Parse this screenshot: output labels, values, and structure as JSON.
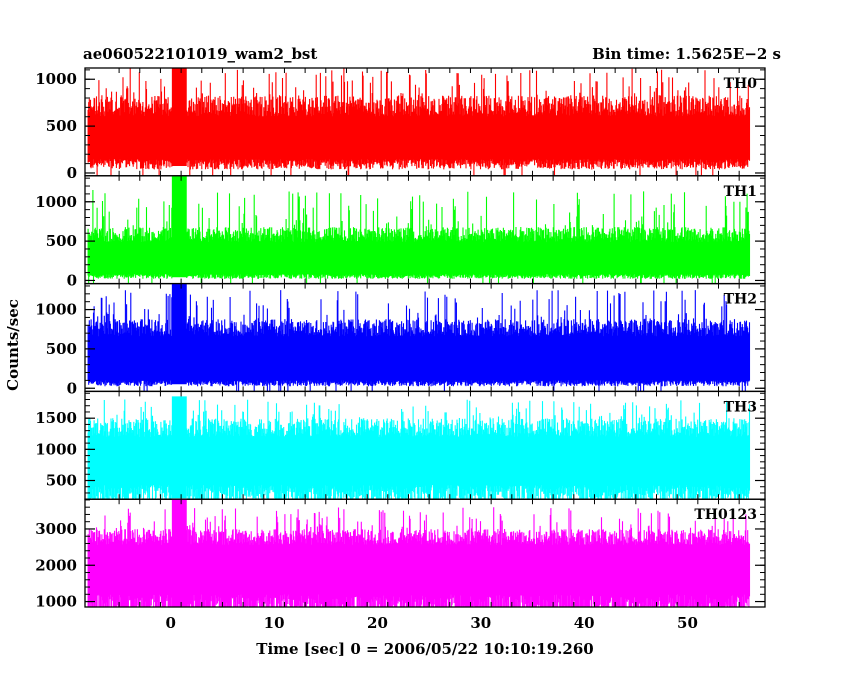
{
  "header": {
    "left_title": "ae060522101019_wam2_bst",
    "right_title": "Bin time: 1.5625E−2 s"
  },
  "chart_data": {
    "type": "line",
    "xlabel": "Time [sec] 0 = 2006/05/22 10:10:19.260",
    "ylabel": "Counts/sec",
    "xlim": [
      -8.3,
      57.5
    ],
    "x_ticks": [
      0,
      10,
      20,
      30,
      40,
      50
    ],
    "x_tick_labels": [
      "0",
      "10",
      "20",
      "30",
      "40",
      "50"
    ],
    "data_range": [
      -8,
      56
    ],
    "bin_time": 0.015625,
    "grid": false,
    "legend": "none",
    "panels": [
      {
        "name": "TH0",
        "color": "#ff0000",
        "ylim": [
          -30,
          1120
        ],
        "yticks": [
          0,
          500,
          1000
        ],
        "ytick_labels": [
          "0",
          "500",
          "1000"
        ],
        "low_level": 150,
        "median_level": 420,
        "high_level": 830,
        "max_level": 1120,
        "burst_time": 0.8,
        "burst_level": 1180
      },
      {
        "name": "TH1",
        "color": "#00ff00",
        "ylim": [
          -40,
          1330
        ],
        "yticks": [
          0,
          500,
          1000
        ],
        "ytick_labels": [
          "0",
          "500",
          "1000"
        ],
        "low_level": 80,
        "median_level": 330,
        "high_level": 680,
        "max_level": 1150,
        "burst_time": 0.8,
        "burst_level": 1330
      },
      {
        "name": "TH2",
        "color": "#0000ff",
        "ylim": [
          -40,
          1330
        ],
        "yticks": [
          0,
          500,
          1000
        ],
        "ytick_labels": [
          "0",
          "500",
          "1000"
        ],
        "low_level": 100,
        "median_level": 480,
        "high_level": 880,
        "max_level": 1250,
        "burst_time": 0.8,
        "burst_level": 1330
      },
      {
        "name": "TH3",
        "color": "#00ffff",
        "ylim": [
          200,
          1930
        ],
        "yticks": [
          500,
          1000,
          1500
        ],
        "ytick_labels": [
          "500",
          "1000",
          "1500"
        ],
        "low_level": 430,
        "median_level": 950,
        "high_level": 1500,
        "max_level": 1800,
        "burst_time": 0.8,
        "burst_level": 1850
      },
      {
        "name": "TH0123",
        "color": "#ff00ff",
        "ylim": [
          850,
          3820
        ],
        "yticks": [
          1000,
          2000,
          3000
        ],
        "ytick_labels": [
          "1000",
          "2000",
          "3000"
        ],
        "low_level": 1200,
        "median_level": 2200,
        "high_level": 3000,
        "max_level": 3600,
        "burst_time": 0.8,
        "burst_level": 3820
      }
    ]
  }
}
